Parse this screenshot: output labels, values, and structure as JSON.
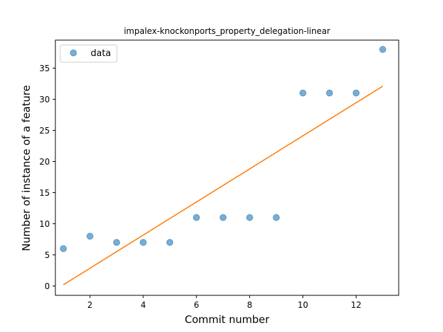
{
  "chart_data": {
    "type": "scatter",
    "title": "impalex-knockonports_property_delegation-linear",
    "xlabel": "Commit number",
    "ylabel": "Number of instance of a feature",
    "xlim": [
      0.7,
      13.6
    ],
    "ylim": [
      -1.5,
      39.5
    ],
    "xticks": [
      2,
      4,
      6,
      8,
      10,
      12
    ],
    "yticks": [
      0,
      5,
      10,
      15,
      20,
      25,
      30,
      35
    ],
    "legend": {
      "placement": "top-left",
      "entries": [
        "data"
      ]
    },
    "grid": false,
    "series": [
      {
        "name": "data",
        "kind": "scatter",
        "color": "#1f77b4",
        "x": [
          1,
          2,
          3,
          4,
          5,
          6,
          7,
          8,
          9,
          10,
          11,
          12,
          13
        ],
        "y": [
          6,
          8,
          7,
          7,
          7,
          11,
          11,
          11,
          11,
          31,
          31,
          31,
          38
        ]
      },
      {
        "kind": "line",
        "color": "#ff7f0e",
        "x": [
          1,
          13
        ],
        "y": [
          0.2,
          32.1
        ]
      }
    ]
  }
}
